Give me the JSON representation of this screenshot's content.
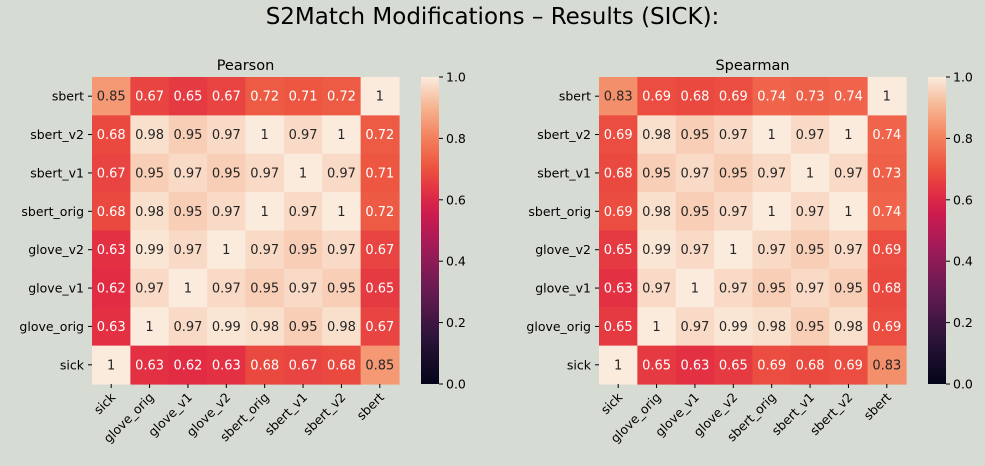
{
  "figure": {
    "title": "S2Match Modifications – Results (SICK):"
  },
  "chart_data": [
    {
      "type": "heatmap",
      "title": "Pearson",
      "x_labels": [
        "sick",
        "glove_orig",
        "glove_v1",
        "glove_v2",
        "sbert_orig",
        "sbert_v1",
        "sbert_v2",
        "sbert"
      ],
      "y_labels": [
        "sbert",
        "sbert_v2",
        "sbert_v1",
        "sbert_orig",
        "glove_v2",
        "glove_v1",
        "glove_orig",
        "sick"
      ],
      "values": [
        [
          0.85,
          0.67,
          0.65,
          0.67,
          0.72,
          0.71,
          0.72,
          1
        ],
        [
          0.68,
          0.98,
          0.95,
          0.97,
          1,
          0.97,
          1,
          0.72
        ],
        [
          0.67,
          0.95,
          0.97,
          0.95,
          0.97,
          1,
          0.97,
          0.71
        ],
        [
          0.68,
          0.98,
          0.95,
          0.97,
          1,
          0.97,
          1,
          0.72
        ],
        [
          0.63,
          0.99,
          0.97,
          1,
          0.97,
          0.95,
          0.97,
          0.67
        ],
        [
          0.62,
          0.97,
          1,
          0.97,
          0.95,
          0.97,
          0.95,
          0.65
        ],
        [
          0.63,
          1,
          0.97,
          0.99,
          0.98,
          0.95,
          0.98,
          0.67
        ],
        [
          1,
          0.63,
          0.62,
          0.63,
          0.68,
          0.67,
          0.68,
          0.85
        ]
      ],
      "vmin": 0,
      "vmax": 1,
      "colorbar_ticks": [
        "0.0",
        "0.2",
        "0.4",
        "0.6",
        "0.8",
        "1.0"
      ],
      "colormap": "rocket"
    },
    {
      "type": "heatmap",
      "title": "Spearman",
      "x_labels": [
        "sick",
        "glove_orig",
        "glove_v1",
        "glove_v2",
        "sbert_orig",
        "sbert_v1",
        "sbert_v2",
        "sbert"
      ],
      "y_labels": [
        "sbert",
        "sbert_v2",
        "sbert_v1",
        "sbert_orig",
        "glove_v2",
        "glove_v1",
        "glove_orig",
        "sick"
      ],
      "values": [
        [
          0.83,
          0.69,
          0.68,
          0.69,
          0.74,
          0.73,
          0.74,
          1
        ],
        [
          0.69,
          0.98,
          0.95,
          0.97,
          1,
          0.97,
          1,
          0.74
        ],
        [
          0.68,
          0.95,
          0.97,
          0.95,
          0.97,
          1,
          0.97,
          0.73
        ],
        [
          0.69,
          0.98,
          0.95,
          0.97,
          1,
          0.97,
          1,
          0.74
        ],
        [
          0.65,
          0.99,
          0.97,
          1,
          0.97,
          0.95,
          0.97,
          0.69
        ],
        [
          0.63,
          0.97,
          1,
          0.97,
          0.95,
          0.97,
          0.95,
          0.68
        ],
        [
          0.65,
          1,
          0.97,
          0.99,
          0.98,
          0.95,
          0.98,
          0.69
        ],
        [
          1,
          0.65,
          0.63,
          0.65,
          0.69,
          0.68,
          0.69,
          0.83
        ]
      ],
      "vmin": 0,
      "vmax": 1,
      "colorbar_ticks": [
        "0.0",
        "0.2",
        "0.4",
        "0.6",
        "0.8",
        "1.0"
      ],
      "colormap": "rocket"
    }
  ]
}
